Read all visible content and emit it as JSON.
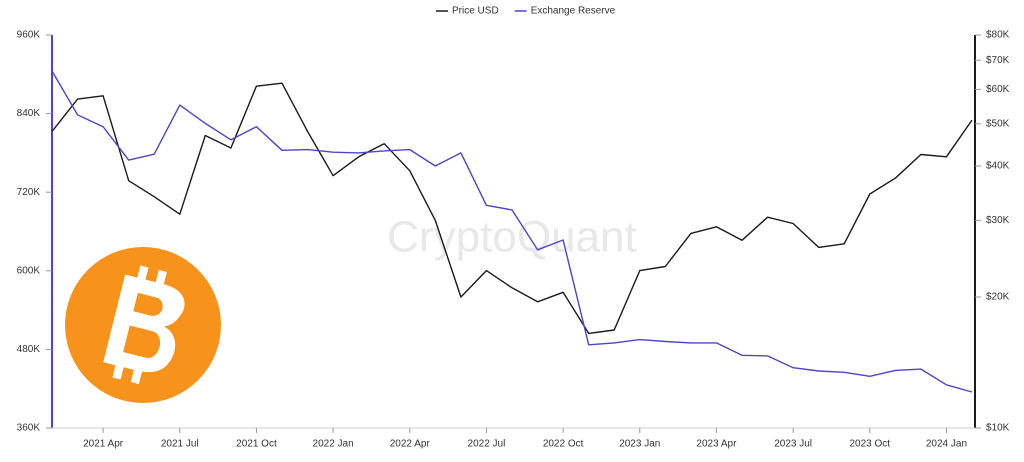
{
  "chart_data": {
    "type": "line",
    "watermark": "CryptoQuant",
    "legend": "top",
    "x": [
      "2021-02",
      "2021-03",
      "2021-04",
      "2021-05",
      "2021-06",
      "2021-07",
      "2021-08",
      "2021-09",
      "2021-10",
      "2021-11",
      "2021-12",
      "2022-01",
      "2022-02",
      "2022-03",
      "2022-04",
      "2022-05",
      "2022-06",
      "2022-07",
      "2022-08",
      "2022-09",
      "2022-10",
      "2022-11",
      "2022-12",
      "2023-01",
      "2023-02",
      "2023-03",
      "2023-04",
      "2023-05",
      "2023-06",
      "2023-07",
      "2023-08",
      "2023-09",
      "2023-10",
      "2023-11",
      "2023-12",
      "2024-01",
      "2024-02"
    ],
    "xlim": [
      "2021-02",
      "2024-02"
    ],
    "xticks": [
      {
        "value": "2021-04",
        "label": "2021 Apr"
      },
      {
        "value": "2021-07",
        "label": "2021 Jul"
      },
      {
        "value": "2021-10",
        "label": "2021 Oct"
      },
      {
        "value": "2022-01",
        "label": "2022 Jan"
      },
      {
        "value": "2022-04",
        "label": "2022 Apr"
      },
      {
        "value": "2022-07",
        "label": "2022 Jul"
      },
      {
        "value": "2022-10",
        "label": "2022 Oct"
      },
      {
        "value": "2023-01",
        "label": "2023 Jan"
      },
      {
        "value": "2023-04",
        "label": "2023 Apr"
      },
      {
        "value": "2023-07",
        "label": "2023 Jul"
      },
      {
        "value": "2023-10",
        "label": "2023 Oct"
      },
      {
        "value": "2024-01",
        "label": "2024 Jan"
      }
    ],
    "ylim": [
      360000,
      960000
    ],
    "yticks": [
      {
        "value": 360000,
        "label": "360K"
      },
      {
        "value": 480000,
        "label": "480K"
      },
      {
        "value": 600000,
        "label": "600K"
      },
      {
        "value": 720000,
        "label": "720K"
      },
      {
        "value": 840000,
        "label": "840K"
      },
      {
        "value": 960000,
        "label": "960K"
      }
    ],
    "y2lim": [
      10000,
      80000
    ],
    "y2scale": "log",
    "y2ticks": [
      {
        "value": 10000,
        "label": "$10K"
      },
      {
        "value": 20000,
        "label": "$20K"
      },
      {
        "value": 30000,
        "label": "$30K"
      },
      {
        "value": 40000,
        "label": "$40K"
      },
      {
        "value": 50000,
        "label": "$50K"
      },
      {
        "value": 60000,
        "label": "$60K"
      },
      {
        "value": 70000,
        "label": "$70K"
      },
      {
        "value": 80000,
        "label": "$80K"
      }
    ],
    "series": [
      {
        "name": "Price USD",
        "color": "#1a1a1a",
        "axis": "y2",
        "values": [
          48000,
          57000,
          58000,
          37000,
          34000,
          31000,
          47000,
          44000,
          61000,
          62000,
          48000,
          38000,
          42000,
          45000,
          39000,
          30000,
          20000,
          23000,
          21000,
          19500,
          20500,
          16500,
          16800,
          23000,
          23500,
          28000,
          29000,
          27000,
          30500,
          29500,
          26000,
          26500,
          34500,
          37500,
          42500,
          42000,
          51000
        ]
      },
      {
        "name": "Exchange Reserve",
        "color": "#4f45c9",
        "values": [
          905000,
          838000,
          820000,
          769000,
          778000,
          853000,
          825000,
          800000,
          820000,
          784000,
          785000,
          781000,
          780000,
          783000,
          785000,
          760000,
          780000,
          700000,
          693000,
          632000,
          647000,
          487000,
          490000,
          495000,
          492000,
          490000,
          490000,
          471000,
          470000,
          452000,
          447000,
          445000,
          439000,
          448000,
          450000,
          426000,
          415000
        ]
      }
    ]
  }
}
